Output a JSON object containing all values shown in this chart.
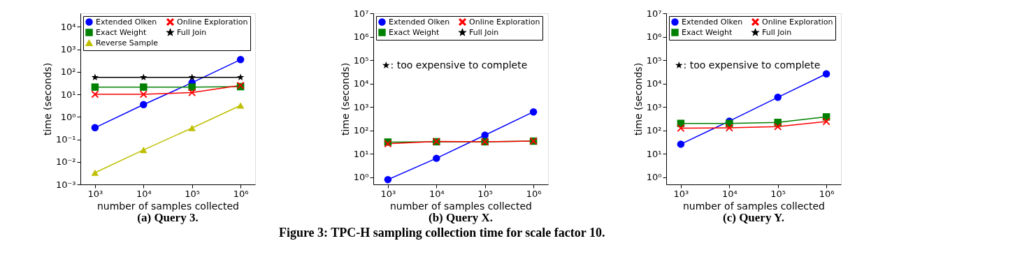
{
  "chart_data": [
    {
      "type": "line",
      "title": "(a) Query 3.",
      "xlabel": "number of samples collected",
      "ylabel": "time (seconds)",
      "x": [
        1000,
        10000,
        100000,
        1000000
      ],
      "log": "xy",
      "grid": false,
      "legend": "top left",
      "xlim": [
        500,
        2000000
      ],
      "ylim": [
        0.001,
        40000
      ],
      "xticks": [
        {
          "value": 1000,
          "label": "10³"
        },
        {
          "value": 10000,
          "label": "10⁴"
        },
        {
          "value": 100000,
          "label": "10⁵"
        },
        {
          "value": 1000000,
          "label": "10⁶"
        }
      ],
      "yticks": [
        {
          "value": 0.001,
          "label": "10⁻³"
        },
        {
          "value": 0.01,
          "label": "10⁻²"
        },
        {
          "value": 0.1,
          "label": "10⁻¹"
        },
        {
          "value": 1,
          "label": "10⁰"
        },
        {
          "value": 10,
          "label": "10¹"
        },
        {
          "value": 100,
          "label": "10²"
        },
        {
          "value": 1000,
          "label": "10³"
        },
        {
          "value": 10000,
          "label": "10⁴"
        }
      ],
      "series": [
        {
          "name": "Extended Olken",
          "color": "#0000ff",
          "marker": "circle",
          "values": [
            0.33,
            3.5,
            33,
            350
          ]
        },
        {
          "name": "Exact Weight",
          "color": "#008000",
          "marker": "square",
          "values": [
            21,
            21,
            21,
            22
          ]
        },
        {
          "name": "Reverse Sample",
          "color": "#bfbf00",
          "marker": "triangle",
          "values": [
            0.0033,
            0.034,
            0.32,
            3.2
          ]
        },
        {
          "name": "Online Exploration",
          "color": "#ff0000",
          "marker": "cross",
          "values": [
            10,
            10,
            12,
            25
          ]
        },
        {
          "name": "Full Join",
          "color": "#000000",
          "marker": "star",
          "values": [
            57,
            57,
            57,
            57
          ]
        }
      ]
    },
    {
      "type": "line",
      "title": "(b) Query X.",
      "xlabel": "number of samples collected",
      "ylabel": "time (seconds)",
      "annotations": [
        "★: too expensive to complete",
        "Figure 3: TPC-H sampling collection time for scale factor 10."
      ],
      "x": [
        1000,
        10000,
        100000,
        1000000
      ],
      "log": "xy",
      "grid": false,
      "legend": "top left",
      "xlim": [
        500,
        2000000
      ],
      "ylim": [
        0.5,
        10000000
      ],
      "xticks": [
        {
          "value": 1000,
          "label": "10³"
        },
        {
          "value": 10000,
          "label": "10⁴"
        },
        {
          "value": 100000,
          "label": "10⁵"
        },
        {
          "value": 1000000,
          "label": "10⁶"
        }
      ],
      "yticks": [
        {
          "value": 1,
          "label": "10⁰"
        },
        {
          "value": 10,
          "label": "10¹"
        },
        {
          "value": 100,
          "label": "10²"
        },
        {
          "value": 1000,
          "label": "10³"
        },
        {
          "value": 10000,
          "label": "10⁴"
        },
        {
          "value": 100000,
          "label": "10⁵"
        },
        {
          "value": 1000000,
          "label": "10⁶"
        },
        {
          "value": 10000000,
          "label": "10⁷"
        }
      ],
      "series": [
        {
          "name": "Extended Olken",
          "color": "#0000ff",
          "marker": "circle",
          "values": [
            0.8,
            6.5,
            63,
            620
          ]
        },
        {
          "name": "Exact Weight",
          "color": "#008000",
          "marker": "square",
          "values": [
            32,
            33,
            33,
            35
          ]
        },
        {
          "name": "Online Exploration",
          "color": "#ff0000",
          "marker": "cross",
          "values": [
            27,
            34,
            33,
            35
          ]
        },
        {
          "name": "Full Join",
          "color": "#000000",
          "marker": "star",
          "values": [
            null,
            null,
            null,
            null
          ]
        }
      ]
    },
    {
      "type": "line",
      "title": "(c) Query Y.",
      "xlabel": "number of samples collected",
      "ylabel": "time (seconds)",
      "annotations": [
        "★: too expensive to complete"
      ],
      "x": [
        1000,
        10000,
        100000,
        1000000
      ],
      "log": "xy",
      "grid": false,
      "legend": "top left",
      "xlim": [
        500,
        2000000
      ],
      "ylim": [
        0.5,
        10000000
      ],
      "xticks": [
        {
          "value": 1000,
          "label": "10³"
        },
        {
          "value": 10000,
          "label": "10⁴"
        },
        {
          "value": 100000,
          "label": "10⁵"
        },
        {
          "value": 1000000,
          "label": "10⁶"
        }
      ],
      "yticks": [
        {
          "value": 1,
          "label": "10⁰"
        },
        {
          "value": 10,
          "label": "10¹"
        },
        {
          "value": 100,
          "label": "10²"
        },
        {
          "value": 1000,
          "label": "10³"
        },
        {
          "value": 10000,
          "label": "10⁴"
        },
        {
          "value": 100000,
          "label": "10⁵"
        },
        {
          "value": 1000000,
          "label": "10⁶"
        },
        {
          "value": 10000000,
          "label": "10⁷"
        }
      ],
      "series": [
        {
          "name": "Extended Olken",
          "color": "#0000ff",
          "marker": "circle",
          "values": [
            26,
            250,
            2600,
            26000
          ]
        },
        {
          "name": "Exact Weight",
          "color": "#008000",
          "marker": "square",
          "values": [
            200,
            200,
            220,
            380
          ]
        },
        {
          "name": "Online Exploration",
          "color": "#ff0000",
          "marker": "cross",
          "values": [
            125,
            130,
            145,
            240
          ]
        },
        {
          "name": "Full Join",
          "color": "#000000",
          "marker": "star",
          "values": [
            null,
            null,
            null,
            null
          ]
        }
      ]
    }
  ]
}
